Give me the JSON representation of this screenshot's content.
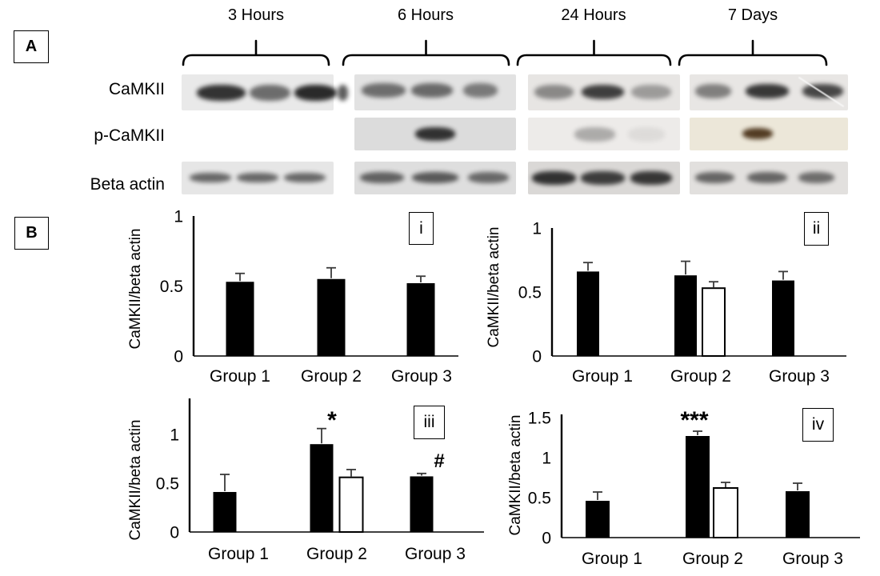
{
  "figure": {
    "panel_a": {
      "label": "A",
      "timepoints": [
        "3 Hours",
        "6 Hours",
        "24 Hours",
        "7 Days"
      ],
      "row_labels": [
        "CaMKII",
        "p-CaMKII",
        "Beta actin"
      ],
      "blots": [
        {
          "row": "CaMKII",
          "timepoint": "3 Hours",
          "bg": "#e9e9e9",
          "band_top": 0.28,
          "band_h": 0.46,
          "bands": [
            {
              "c": 0.26,
              "w": 0.32,
              "o": 0.88
            },
            {
              "c": 0.58,
              "w": 0.27,
              "o": 0.6
            },
            {
              "c": 0.88,
              "w": 0.28,
              "o": 0.92
            },
            {
              "c": 1.06,
              "w": 0.07,
              "o": 0.7
            }
          ]
        },
        {
          "row": "CaMKII",
          "timepoint": "6 Hours",
          "bg": "#e2e2e2",
          "band_top": 0.24,
          "band_h": 0.4,
          "bands": [
            {
              "c": 0.18,
              "w": 0.27,
              "o": 0.58
            },
            {
              "c": 0.48,
              "w": 0.26,
              "o": 0.6
            },
            {
              "c": 0.78,
              "w": 0.21,
              "o": 0.52
            }
          ]
        },
        {
          "row": "CaMKII",
          "timepoint": "24 Hours",
          "bg": "#e7e5e3",
          "band_top": 0.28,
          "band_h": 0.4,
          "bands": [
            {
              "c": 0.17,
              "w": 0.26,
              "o": 0.45
            },
            {
              "c": 0.49,
              "w": 0.28,
              "o": 0.82
            },
            {
              "c": 0.81,
              "w": 0.26,
              "o": 0.36
            }
          ]
        },
        {
          "row": "CaMKII",
          "timepoint": "7 Days",
          "bg": "#e8e6e4",
          "band_top": 0.26,
          "band_h": 0.4,
          "scratch": true,
          "bands": [
            {
              "c": 0.15,
              "w": 0.23,
              "o": 0.5
            },
            {
              "c": 0.49,
              "w": 0.27,
              "o": 0.85
            },
            {
              "c": 0.84,
              "w": 0.26,
              "o": 0.78
            }
          ]
        },
        {
          "row": "p-CaMKII",
          "timepoint": "6 Hours",
          "bg": "#dcdcdc",
          "band_top": 0.3,
          "band_h": 0.4,
          "bands": [
            {
              "c": 0.5,
              "w": 0.25,
              "o": 0.88
            }
          ]
        },
        {
          "row": "p-CaMKII",
          "timepoint": "24 Hours",
          "bg": "#edebe9",
          "band_top": 0.3,
          "band_h": 0.42,
          "bands": [
            {
              "c": 0.44,
              "w": 0.27,
              "o": 0.3
            },
            {
              "c": 0.78,
              "w": 0.24,
              "o": 0.07
            }
          ]
        },
        {
          "row": "p-CaMKII",
          "timepoint": "7 Days",
          "bg": "#ece7d9",
          "band_top": 0.32,
          "band_h": 0.34,
          "bands": [
            {
              "c": 0.43,
              "w": 0.19,
              "o": 0.9,
              "color": "#42290f"
            }
          ]
        },
        {
          "row": "Beta actin",
          "timepoint": "3 Hours",
          "bg": "#e6e6e6",
          "band_top": 0.34,
          "band_h": 0.3,
          "bands": [
            {
              "c": 0.19,
              "w": 0.27,
              "o": 0.62
            },
            {
              "c": 0.5,
              "w": 0.27,
              "o": 0.62
            },
            {
              "c": 0.81,
              "w": 0.27,
              "o": 0.62
            }
          ]
        },
        {
          "row": "Beta actin",
          "timepoint": "6 Hours",
          "bg": "#dedede",
          "band_top": 0.32,
          "band_h": 0.34,
          "bands": [
            {
              "c": 0.17,
              "w": 0.27,
              "o": 0.64
            },
            {
              "c": 0.5,
              "w": 0.29,
              "o": 0.68
            },
            {
              "c": 0.83,
              "w": 0.25,
              "o": 0.6
            }
          ]
        },
        {
          "row": "Beta actin",
          "timepoint": "24 Hours",
          "bg": "#dad8d6",
          "band_top": 0.3,
          "band_h": 0.4,
          "bands": [
            {
              "c": 0.17,
              "w": 0.29,
              "o": 0.88
            },
            {
              "c": 0.49,
              "w": 0.29,
              "o": 0.82
            },
            {
              "c": 0.81,
              "w": 0.27,
              "o": 0.85
            }
          ]
        },
        {
          "row": "Beta actin",
          "timepoint": "7 Days",
          "bg": "#e2e0de",
          "band_top": 0.32,
          "band_h": 0.34,
          "bands": [
            {
              "c": 0.16,
              "w": 0.25,
              "o": 0.62
            },
            {
              "c": 0.49,
              "w": 0.25,
              "o": 0.62
            },
            {
              "c": 0.8,
              "w": 0.23,
              "o": 0.58
            }
          ]
        }
      ]
    },
    "panel_b": {
      "label": "B"
    },
    "colors": {
      "bar_black": "#000000",
      "bar_white": "#ffffff",
      "axis": "#000000"
    }
  },
  "chart_data": [
    {
      "id": "i",
      "type": "bar",
      "panel_label": "i",
      "ylabel": "CaMKII/beta actin",
      "xlabel": "",
      "categories": [
        "Group 1",
        "Group 2",
        "Group 3"
      ],
      "yticks": [
        0,
        0.5,
        1
      ],
      "ylim": [
        0,
        1
      ],
      "grid": false,
      "legend": "none",
      "bars": [
        {
          "category": "Group 1",
          "fill": "black",
          "value": 0.53,
          "error": 0.06
        },
        {
          "category": "Group 2",
          "fill": "black",
          "value": 0.55,
          "error": 0.08
        },
        {
          "category": "Group 3",
          "fill": "black",
          "value": 0.52,
          "error": 0.05
        }
      ]
    },
    {
      "id": "ii",
      "type": "bar",
      "panel_label": "ii",
      "ylabel": "CaMKII/beta actin",
      "xlabel": "",
      "categories": [
        "Group 1",
        "Group 2",
        "Group 3"
      ],
      "yticks": [
        0,
        0.5,
        1
      ],
      "ylim": [
        0,
        1
      ],
      "grid": false,
      "legend": "none",
      "bars": [
        {
          "category": "Group 1",
          "fill": "black",
          "value": 0.66,
          "error": 0.07
        },
        {
          "category": "Group 2",
          "fill": "black",
          "value": 0.63,
          "error": 0.11
        },
        {
          "category": "Group 2",
          "fill": "white",
          "value": 0.53,
          "error": 0.05
        },
        {
          "category": "Group 3",
          "fill": "black",
          "value": 0.59,
          "error": 0.07
        }
      ]
    },
    {
      "id": "iii",
      "type": "bar",
      "panel_label": "iii",
      "ylabel": "CaMKII/beta actin",
      "xlabel": "",
      "categories": [
        "Group 1",
        "Group 2",
        "Group 3"
      ],
      "yticks": [
        0,
        0.5,
        1
      ],
      "ylim": [
        0,
        1.37
      ],
      "grid": false,
      "legend": "none",
      "bars": [
        {
          "category": "Group 1",
          "fill": "black",
          "value": 0.41,
          "error": 0.18
        },
        {
          "category": "Group 2",
          "fill": "black",
          "value": 0.9,
          "error": 0.16,
          "sig": "*"
        },
        {
          "category": "Group 2",
          "fill": "white",
          "value": 0.56,
          "error": 0.08
        },
        {
          "category": "Group 3",
          "fill": "black",
          "value": 0.57,
          "error": 0.03,
          "sig": "#"
        }
      ]
    },
    {
      "id": "iv",
      "type": "bar",
      "panel_label": "iv",
      "ylabel": "CaMKII/beta actin",
      "xlabel": "",
      "categories": [
        "Group 1",
        "Group 2",
        "Group 3"
      ],
      "yticks": [
        0,
        0.5,
        1,
        1.5
      ],
      "ylim": [
        0,
        1.5
      ],
      "grid": false,
      "legend": "none",
      "bars": [
        {
          "category": "Group 1",
          "fill": "black",
          "value": 0.46,
          "error": 0.11
        },
        {
          "category": "Group 2",
          "fill": "black",
          "value": 1.27,
          "error": 0.06,
          "sig": "***"
        },
        {
          "category": "Group 2",
          "fill": "white",
          "value": 0.62,
          "error": 0.07
        },
        {
          "category": "Group 3",
          "fill": "black",
          "value": 0.58,
          "error": 0.1
        }
      ]
    }
  ]
}
